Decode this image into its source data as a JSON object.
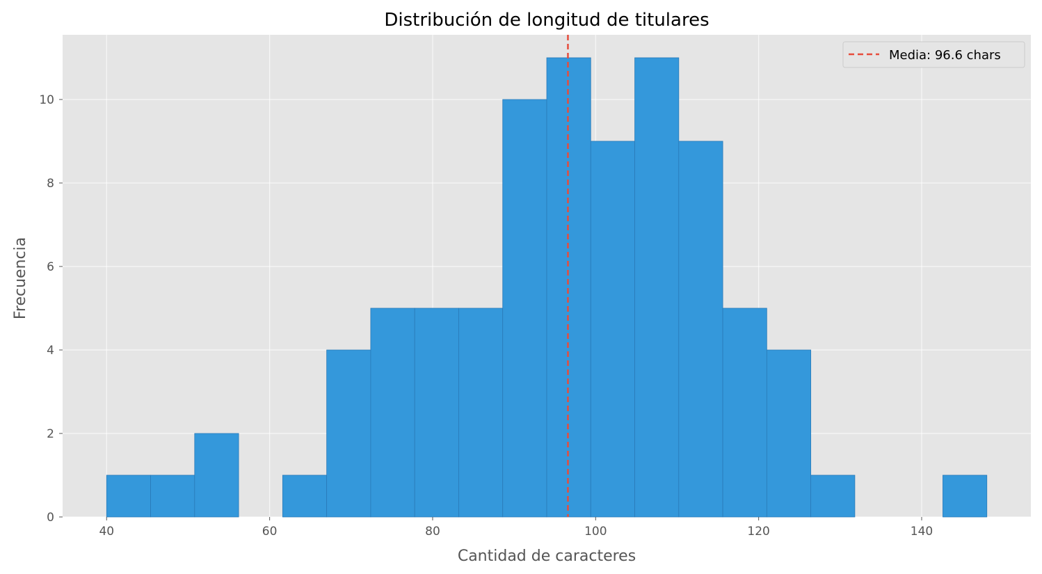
{
  "chart_data": {
    "type": "bar",
    "title": "Distribución de longitud de titulares",
    "xlabel": "Cantidad de caracteres",
    "ylabel": "Frecuencia",
    "xlim": [
      34.6,
      153.4
    ],
    "ylim": [
      0,
      11.55
    ],
    "xticks": [
      40,
      60,
      80,
      100,
      120,
      140
    ],
    "yticks": [
      0,
      2,
      4,
      6,
      8,
      10
    ],
    "bin_edges": [
      40,
      45.4,
      50.8,
      56.2,
      61.6,
      67.0,
      72.4,
      77.8,
      83.2,
      88.6,
      94.0,
      99.4,
      104.8,
      110.2,
      115.6,
      121.0,
      126.4,
      131.8,
      137.2,
      142.6,
      148.0
    ],
    "values": [
      1,
      1,
      2,
      0,
      1,
      4,
      5,
      5,
      5,
      10,
      11,
      9,
      11,
      9,
      5,
      4,
      1,
      0,
      0,
      1
    ],
    "mean": {
      "value": 96.6,
      "label": "Media: 96.6 chars"
    },
    "grid": true,
    "legend_position": "top-right",
    "colors": {
      "bar": "#3498db",
      "bar_edge": "#2a7ab8",
      "mean_line": "#e74c3c",
      "plot_bg": "#e5e5e5",
      "grid": "#ffffff"
    }
  }
}
